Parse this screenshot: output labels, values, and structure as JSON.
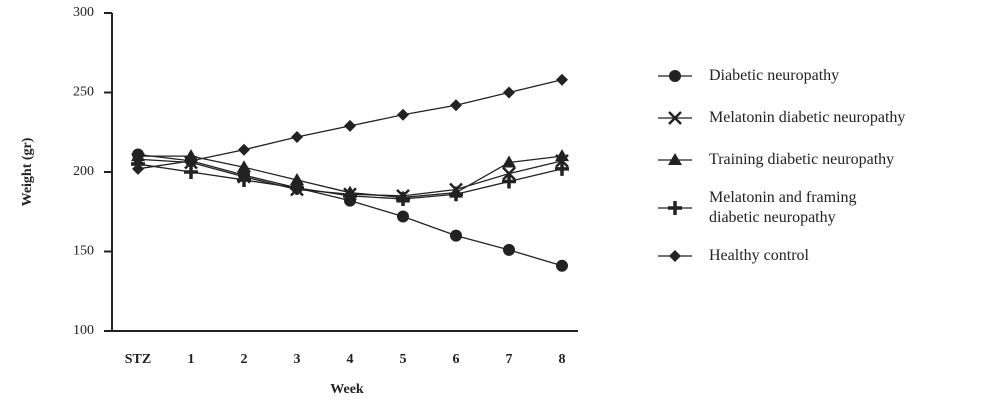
{
  "chart_data": {
    "type": "line",
    "xlabel": "Week",
    "ylabel": "Weight (gr)",
    "categories": [
      "STZ",
      "1",
      "2",
      "3",
      "4",
      "5",
      "6",
      "7",
      "8"
    ],
    "ylim": [
      100,
      300
    ],
    "yticks": [
      100,
      150,
      200,
      250,
      300
    ],
    "grid": false,
    "legend": "right",
    "series": [
      {
        "name": "Diabetic neuropathy",
        "color": "#222222",
        "marker": "circle",
        "values": [
          211,
          207,
          198,
          190,
          182,
          172,
          160,
          151,
          141
        ]
      },
      {
        "name": "Melatonin diabetic neuropathy",
        "color": "#222222",
        "marker": "x",
        "values": [
          208,
          206,
          197,
          189,
          186,
          185,
          189,
          199,
          207
        ]
      },
      {
        "name": "Training diabetic neuropathy",
        "color": "#222222",
        "marker": "triangle",
        "values": [
          210,
          210,
          203,
          195,
          187,
          184,
          187,
          206,
          210
        ]
      },
      {
        "name": "Melatonin and framing diabetic neuropathy",
        "color": "#222222",
        "marker": "plus",
        "values": [
          205,
          200,
          195,
          190,
          185,
          183,
          186,
          194,
          202
        ]
      },
      {
        "name": "Healthy control",
        "color": "#222222",
        "marker": "diamond",
        "values": [
          202,
          207,
          214,
          222,
          229,
          236,
          242,
          250,
          258
        ]
      }
    ]
  }
}
